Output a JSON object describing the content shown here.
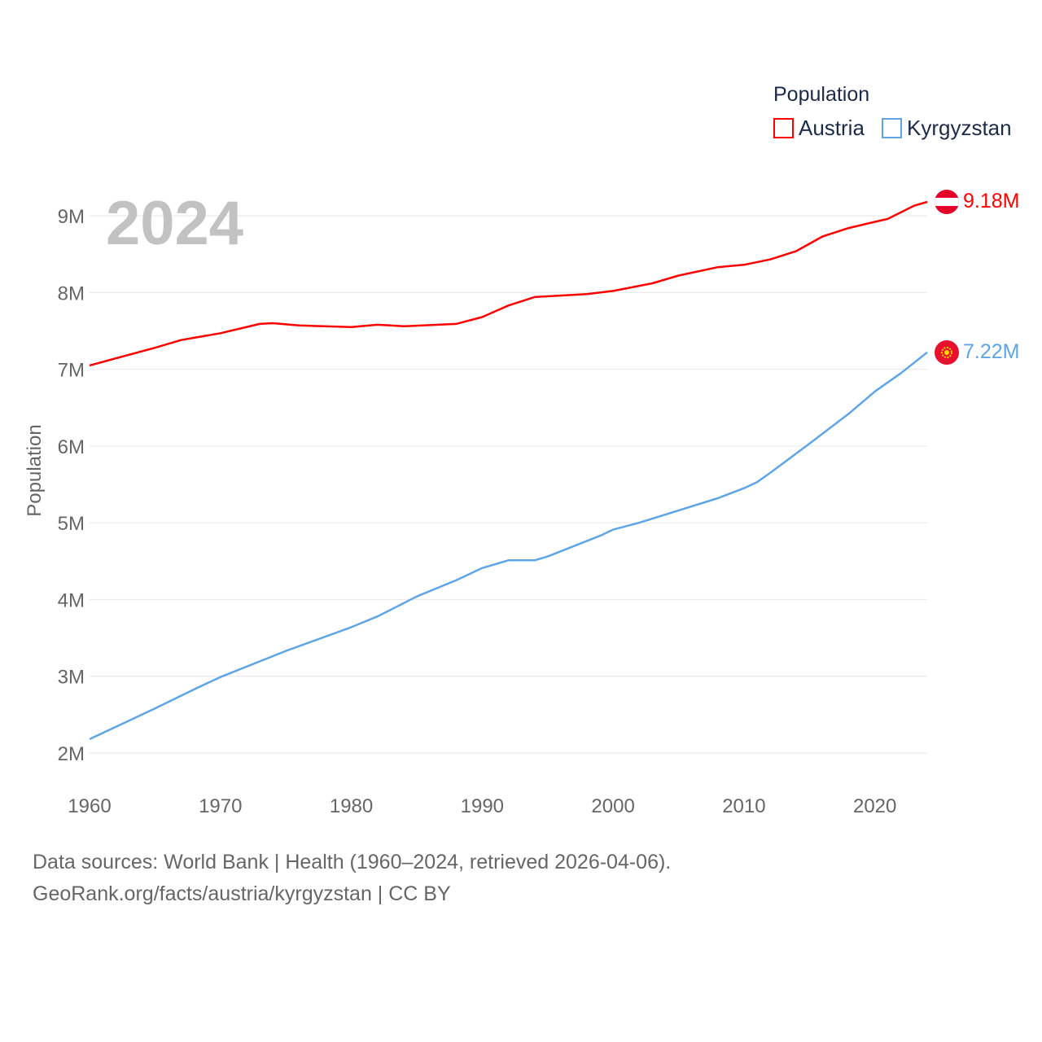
{
  "chart_data": {
    "type": "line",
    "title": "",
    "overlay_year": "2024",
    "xlabel": "",
    "ylabel": "Population",
    "xlim": [
      1960,
      2024
    ],
    "ylim": [
      2000000,
      9000000
    ],
    "x_ticks": [
      "1960",
      "1970",
      "1980",
      "1990",
      "2000",
      "2010",
      "2020"
    ],
    "y_ticks": [
      "2M",
      "3M",
      "4M",
      "5M",
      "6M",
      "7M",
      "8M",
      "9M"
    ],
    "grid": true,
    "legend": {
      "title": "Population",
      "placement": "top-right"
    },
    "series": [
      {
        "name": "Austria",
        "color": "#ff0000",
        "flag": "austria-flag",
        "end_label": "9.18M",
        "x": [
          1960,
          1965,
          1967,
          1970,
          1973,
          1974,
          1976,
          1980,
          1982,
          1984,
          1988,
          1990,
          1992,
          1994,
          1998,
          2000,
          2003,
          2005,
          2008,
          2010,
          2012,
          2014,
          2016,
          2018,
          2020,
          2021,
          2023,
          2024
        ],
        "values": [
          7.05,
          7.28,
          7.38,
          7.47,
          7.59,
          7.6,
          7.57,
          7.55,
          7.58,
          7.56,
          7.59,
          7.68,
          7.83,
          7.94,
          7.98,
          8.02,
          8.12,
          8.22,
          8.33,
          8.36,
          8.43,
          8.54,
          8.73,
          8.84,
          8.92,
          8.96,
          9.13,
          9.18
        ]
      },
      {
        "name": "Kyrgyzstan",
        "color": "#5ea5e8",
        "flag": "kyrgyzstan-flag",
        "end_label": "7.22M",
        "x": [
          1960,
          1965,
          1968,
          1970,
          1975,
          1980,
          1982,
          1985,
          1988,
          1990,
          1992,
          1994,
          1995,
          1999,
          2000,
          2002,
          2005,
          2008,
          2010,
          2011,
          2012,
          2015,
          2018,
          2020,
          2022,
          2024
        ],
        "values": [
          2.18,
          2.58,
          2.83,
          2.99,
          3.33,
          3.64,
          3.78,
          4.04,
          4.25,
          4.41,
          4.51,
          4.51,
          4.56,
          4.83,
          4.91,
          5.0,
          5.16,
          5.32,
          5.45,
          5.53,
          5.65,
          6.03,
          6.42,
          6.71,
          6.95,
          7.22
        ]
      }
    ]
  },
  "footer": {
    "line1": "Data sources: World Bank | Health (1960–2024, retrieved 2026-04-06).",
    "line2": "GeoRank.org/facts/austria/kyrgyzstan | CC BY"
  }
}
